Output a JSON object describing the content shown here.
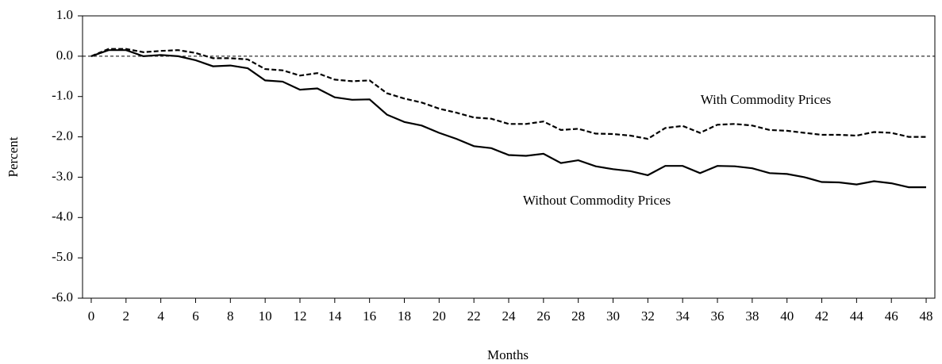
{
  "chart_data": {
    "type": "line",
    "x_label": "Months",
    "y_label": "Percent",
    "x": [
      0,
      1,
      2,
      3,
      4,
      5,
      6,
      7,
      8,
      9,
      10,
      11,
      12,
      13,
      14,
      15,
      16,
      17,
      18,
      19,
      20,
      21,
      22,
      23,
      24,
      25,
      26,
      27,
      28,
      29,
      30,
      31,
      32,
      33,
      34,
      35,
      36,
      37,
      38,
      39,
      40,
      41,
      42,
      43,
      44,
      45,
      46,
      47,
      48
    ],
    "series": [
      {
        "name": "With Commodity Prices",
        "color": "#000000",
        "dash": true,
        "values": [
          0,
          0.18,
          0.18,
          0.1,
          0.13,
          0.15,
          0.08,
          -0.05,
          -0.05,
          -0.08,
          -0.32,
          -0.35,
          -0.48,
          -0.42,
          -0.58,
          -0.62,
          -0.6,
          -0.92,
          -1.05,
          -1.15,
          -1.3,
          -1.4,
          -1.52,
          -1.55,
          -1.68,
          -1.68,
          -1.62,
          -1.83,
          -1.8,
          -1.92,
          -1.93,
          -1.97,
          -2.05,
          -1.78,
          -1.73,
          -1.9,
          -1.7,
          -1.68,
          -1.72,
          -1.83,
          -1.85,
          -1.9,
          -1.95,
          -1.95,
          -1.97,
          -1.88,
          -1.9,
          -2.0,
          -2.0
        ]
      },
      {
        "name": "Without Commodity Prices",
        "color": "#000000",
        "dash": false,
        "values": [
          0,
          0.15,
          0.15,
          0.0,
          0.03,
          0.0,
          -0.1,
          -0.25,
          -0.23,
          -0.3,
          -0.6,
          -0.63,
          -0.83,
          -0.8,
          -1.02,
          -1.08,
          -1.07,
          -1.45,
          -1.63,
          -1.72,
          -1.9,
          -2.05,
          -2.23,
          -2.28,
          -2.45,
          -2.47,
          -2.42,
          -2.65,
          -2.58,
          -2.73,
          -2.8,
          -2.85,
          -2.95,
          -2.72,
          -2.72,
          -2.9,
          -2.72,
          -2.73,
          -2.78,
          -2.9,
          -2.92,
          -3.0,
          -3.12,
          -3.13,
          -3.18,
          -3.1,
          -3.15,
          -3.25,
          -3.25
        ]
      }
    ],
    "xlim": [
      -0.5,
      48.5
    ],
    "xticks": [
      0,
      2,
      4,
      6,
      8,
      10,
      12,
      14,
      16,
      18,
      20,
      22,
      24,
      26,
      28,
      30,
      32,
      34,
      36,
      38,
      40,
      42,
      44,
      46,
      48
    ],
    "ylim": [
      -6,
      1
    ],
    "yticks": [
      {
        "value": 1,
        "label": "1.0"
      },
      {
        "value": 0,
        "label": "0.0"
      },
      {
        "value": -1,
        "label": "-1.0"
      },
      {
        "value": -2,
        "label": "-2.0"
      },
      {
        "value": -3,
        "label": "-3.0"
      },
      {
        "value": -4,
        "label": "-4.0"
      },
      {
        "value": -5,
        "label": "-5.0"
      },
      {
        "value": -6,
        "label": "-6.0"
      }
    ],
    "grid": false
  }
}
